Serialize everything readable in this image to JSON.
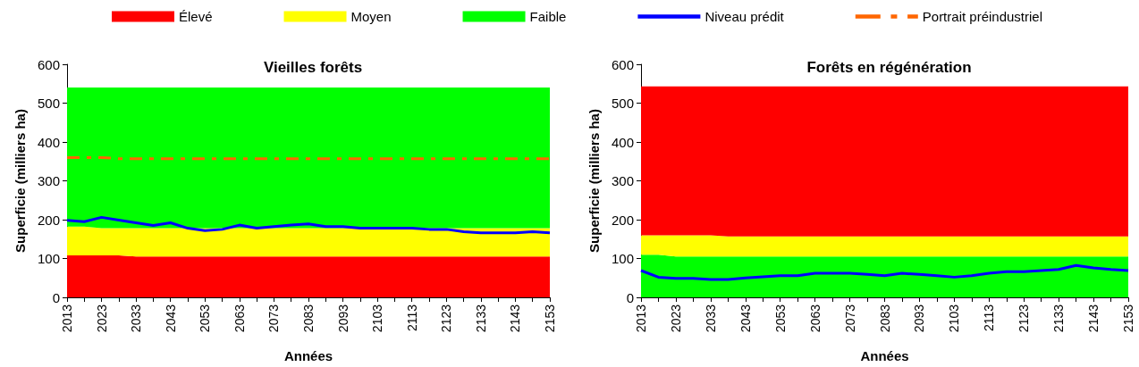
{
  "chart_data": [
    {
      "type": "area",
      "title": "Vieilles forêts",
      "xlabel": "Années",
      "ylabel": "Superficie (milliers ha)",
      "stacked": true,
      "legend": "top",
      "grid": false,
      "categories": [
        "2013",
        null,
        "2023",
        null,
        "2033",
        null,
        "2043",
        null,
        "2053",
        null,
        "2063",
        null,
        "2073",
        null,
        "2083",
        null,
        "2093",
        null,
        "2103",
        null,
        "2113",
        null,
        "2123",
        null,
        "2133",
        null,
        "2143",
        null,
        "2153"
      ],
      "ylim": [
        0,
        600
      ],
      "yticks": [
        0,
        100,
        200,
        300,
        400,
        500,
        600
      ],
      "series": [
        {
          "name": "Élevé",
          "color": "#ff0000",
          "values": [
            108,
            108,
            108,
            108,
            105,
            105,
            105,
            105,
            105,
            105,
            105,
            105,
            105,
            105,
            105,
            105,
            105,
            105,
            105,
            105,
            105,
            105,
            105,
            105,
            105,
            105,
            105,
            105,
            105
          ]
        },
        {
          "name": "Moyen",
          "color": "#ffff00",
          "values": [
            74,
            74,
            70,
            70,
            73,
            73,
            73,
            73,
            73,
            73,
            73,
            73,
            73,
            73,
            73,
            73,
            73,
            73,
            73,
            73,
            73,
            73,
            73,
            73,
            73,
            73,
            73,
            73,
            73
          ]
        },
        {
          "name": "Faible",
          "color": "#00ff00",
          "values": [
            358,
            358,
            362,
            362,
            362,
            362,
            362,
            362,
            362,
            362,
            362,
            362,
            362,
            362,
            362,
            362,
            362,
            362,
            362,
            362,
            362,
            362,
            362,
            362,
            362,
            362,
            362,
            362,
            362
          ]
        },
        {
          "name": "Niveau prédit",
          "type": "line",
          "color": "#0000ff",
          "line_style": "solid",
          "values": [
            198,
            195,
            206,
            199,
            192,
            185,
            192,
            178,
            172,
            175,
            186,
            178,
            182,
            186,
            189,
            182,
            182,
            178,
            178,
            178,
            178,
            175,
            175,
            169,
            166,
            166,
            166,
            169,
            166
          ]
        },
        {
          "name": "Portrait préindustriel",
          "type": "line",
          "color": "#ff6600",
          "line_style": "dashed",
          "values": [
            360,
            360,
            360,
            357,
            357,
            357,
            357,
            357,
            357,
            357,
            357,
            357,
            357,
            357,
            357,
            357,
            357,
            357,
            357,
            357,
            357,
            357,
            357,
            357,
            357,
            357,
            357,
            357,
            357
          ]
        }
      ]
    },
    {
      "type": "area",
      "title": "Forêts en régénération",
      "xlabel": "Années",
      "ylabel": "Superficie (milliers ha)",
      "stacked": true,
      "legend": false,
      "grid": false,
      "categories": [
        "2013",
        null,
        "2023",
        null,
        "2033",
        null,
        "2043",
        null,
        "2053",
        null,
        "2063",
        null,
        "2073",
        null,
        "2083",
        null,
        "2093",
        null,
        "2103",
        null,
        "2113",
        null,
        "2123",
        null,
        "2133",
        null,
        "2143",
        null,
        "2153"
      ],
      "ylim": [
        0,
        600
      ],
      "yticks": [
        0,
        100,
        200,
        300,
        400,
        500,
        600
      ],
      "series": [
        {
          "color": "#00ff00",
          "values": [
            110,
            110,
            105,
            105,
            105,
            105,
            105,
            105,
            105,
            105,
            105,
            105,
            105,
            105,
            105,
            105,
            105,
            105,
            105,
            105,
            105,
            105,
            105,
            105,
            105,
            105,
            105,
            105,
            105
          ]
        },
        {
          "color": "#ffff00",
          "values": [
            50,
            50,
            55,
            55,
            55,
            52,
            52,
            52,
            52,
            52,
            52,
            52,
            52,
            52,
            52,
            52,
            52,
            52,
            52,
            52,
            52,
            52,
            52,
            52,
            52,
            52,
            52,
            52,
            52
          ]
        },
        {
          "color": "#ff0000",
          "values": [
            383,
            383,
            383,
            383,
            383,
            386,
            386,
            386,
            386,
            386,
            386,
            386,
            386,
            386,
            386,
            386,
            386,
            386,
            386,
            386,
            386,
            386,
            386,
            386,
            386,
            386,
            386,
            386,
            386
          ]
        },
        {
          "type": "line",
          "color": "#0000ff",
          "line_style": "solid",
          "values": [
            69,
            52,
            49,
            49,
            46,
            46,
            50,
            53,
            56,
            56,
            62,
            62,
            62,
            59,
            56,
            62,
            59,
            56,
            52,
            56,
            62,
            66,
            66,
            69,
            72,
            82,
            76,
            72,
            69
          ]
        }
      ]
    }
  ]
}
